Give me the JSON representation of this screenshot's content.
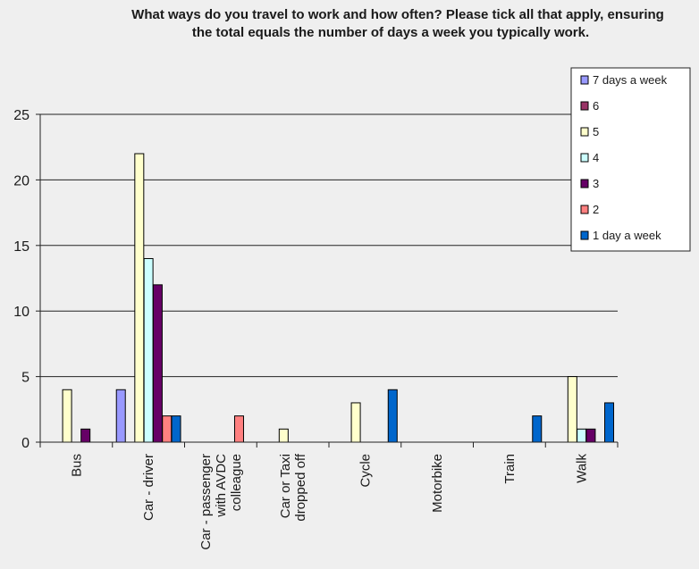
{
  "chart_data": {
    "type": "bar",
    "title_lines": [
      "What ways do you travel to work and how often? Please tick all that apply, ensuring",
      "the total equals the number of days a week you typically work."
    ],
    "categories": [
      [
        "Bus"
      ],
      [
        "Car - driver"
      ],
      [
        "Car - passenger",
        "with AVDC",
        "colleague"
      ],
      [
        "Car or Taxi",
        "dropped off"
      ],
      [
        "Cycle"
      ],
      [
        "Motorbike"
      ],
      [
        "Train"
      ],
      [
        "Walk"
      ]
    ],
    "series": [
      {
        "name": "7 days a week",
        "color": "#9999ff",
        "values": [
          0,
          4,
          0,
          0,
          0,
          0,
          0,
          0
        ]
      },
      {
        "name": "6",
        "color": "#993366",
        "values": [
          0,
          0,
          0,
          0,
          0,
          0,
          0,
          0
        ]
      },
      {
        "name": "5",
        "color": "#ffffcc",
        "values": [
          4,
          22,
          0,
          1,
          3,
          0,
          0,
          5
        ]
      },
      {
        "name": "4",
        "color": "#ccffff",
        "values": [
          0,
          14,
          0,
          0,
          0,
          0,
          0,
          1
        ]
      },
      {
        "name": "3",
        "color": "#660066",
        "values": [
          1,
          12,
          0,
          0,
          0,
          0,
          0,
          1
        ]
      },
      {
        "name": "2",
        "color": "#ff8080",
        "values": [
          0,
          2,
          2,
          0,
          0,
          0,
          0,
          0
        ]
      },
      {
        "name": "1 day a week",
        "color": "#0066cc",
        "values": [
          0,
          2,
          0,
          0,
          4,
          0,
          2,
          3
        ]
      }
    ],
    "ylim": [
      0,
      25
    ],
    "yticks": [
      "0",
      "5",
      "10",
      "15",
      "20",
      "25"
    ],
    "grid": true,
    "legend_position": "right"
  }
}
